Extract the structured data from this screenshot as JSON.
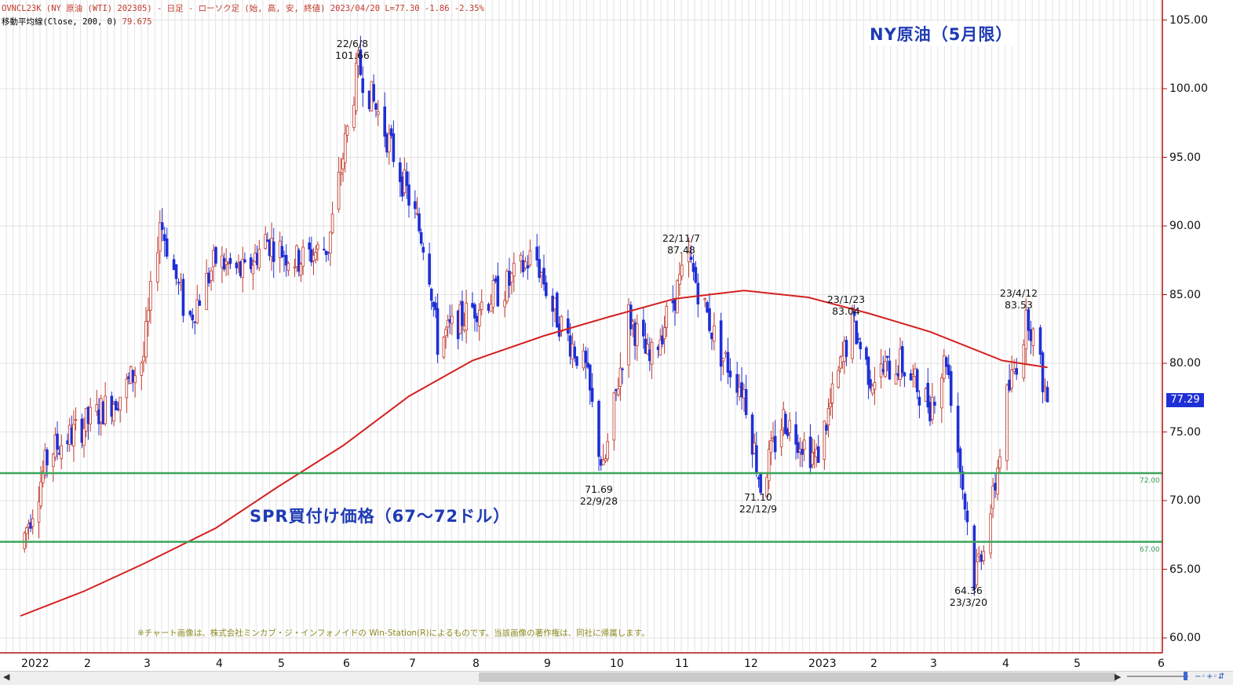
{
  "header": {
    "line1": "OVNCL23K (NY 原油 (WTI) 202305) - 日足 - ローソク足 (始, 高, 安, 終値)  2023/04/20 L=77.30 -1.86  -2.35%",
    "line2_label": "移動平均線(Close, 200, 0)",
    "line2_value": "79.675"
  },
  "title": "NY原油（5月限）",
  "spr_label": "SPR買付け価格（67～72ドル）",
  "footnote": "※チャート画像は、株式会社ミンカブ・ジ・インフォノイドの Win-Station(R)によるものです。当該画像の著作権は、同社に帰属します。",
  "last_price": "77.29",
  "annotations": [
    {
      "date": "22/6/8",
      "value": "101.66"
    },
    {
      "date": "22/11/7",
      "value": "87.48"
    },
    {
      "date": "23/1/23",
      "value": "83.04"
    },
    {
      "date": "23/4/12",
      "value": "83.53"
    },
    {
      "date": "22/9/28",
      "value": "71.69"
    },
    {
      "date": "22/12/9",
      "value": "71.10"
    },
    {
      "date": "23/3/20",
      "value": "64.36"
    }
  ],
  "colors": {
    "up_candle": "#c0392b",
    "down_candle": "#1f2fd6",
    "ma_line": "#d42020",
    "support_lines": "#3aa55a",
    "title_text": "#1f3bb3",
    "grid": "#e3e3e3"
  },
  "icons": {
    "scroll_left": "chevron-left-icon",
    "scroll_right": "chevron-right-icon"
  },
  "chart_data": {
    "type": "candlestick",
    "title": "NY原油（5月限）",
    "y_tick_labels": [
      "105.00",
      "100.00",
      "95.00",
      "90.00",
      "85.00",
      "80.00",
      "75.00",
      "70.00",
      "65.00",
      "60.00"
    ],
    "y_range": [
      60,
      105
    ],
    "x_tick_labels": [
      "2022",
      "2",
      "3",
      "4",
      "5",
      "6",
      "7",
      "8",
      "9",
      "10",
      "11",
      "12",
      "2023",
      "2",
      "3",
      "4",
      "5",
      "6"
    ],
    "horizontal_lines": [
      {
        "label": "72.00",
        "value": 72.0
      },
      {
        "label": "67.00",
        "value": 67.0
      }
    ],
    "moving_average": {
      "name": "移動平均線(Close, 200, 0)",
      "points": [
        [
          "2022-01-01",
          61.6
        ],
        [
          "2022-02-01",
          63.4
        ],
        [
          "2022-03-01",
          65.4
        ],
        [
          "2022-04-01",
          68.0
        ],
        [
          "2022-05-01",
          71.0
        ],
        [
          "2022-06-01",
          74.0
        ],
        [
          "2022-07-01",
          77.6
        ],
        [
          "2022-08-01",
          80.2
        ],
        [
          "2022-09-01",
          82.0
        ],
        [
          "2022-10-01",
          83.4
        ],
        [
          "2022-11-01",
          84.7
        ],
        [
          "2022-12-01",
          85.3
        ],
        [
          "2023-01-01",
          84.8
        ],
        [
          "2023-02-01",
          83.6
        ],
        [
          "2023-03-01",
          82.3
        ],
        [
          "2023-04-01",
          80.2
        ],
        [
          "2023-04-20",
          79.7
        ]
      ]
    },
    "price_series": {
      "name": "NY 原油 (WTI) 202305",
      "points": [
        [
          "2022-01-01",
          66.5
        ],
        [
          "2022-01-15",
          73.5
        ],
        [
          "2022-02-01",
          75.5
        ],
        [
          "2022-02-20",
          78.0
        ],
        [
          "2022-03-01",
          80.5
        ],
        [
          "2022-03-08",
          90.5
        ],
        [
          "2022-03-20",
          83.0
        ],
        [
          "2022-04-01",
          87.5
        ],
        [
          "2022-04-15",
          86.5
        ],
        [
          "2022-04-25",
          89.0
        ],
        [
          "2022-05-10",
          87.5
        ],
        [
          "2022-05-25",
          88.5
        ],
        [
          "2022-06-08",
          101.66
        ],
        [
          "2022-06-20",
          97.0
        ],
        [
          "2022-07-01",
          92.0
        ],
        [
          "2022-07-10",
          88.0
        ],
        [
          "2022-07-15",
          81.5
        ],
        [
          "2022-08-01",
          84.0
        ],
        [
          "2022-08-15",
          85.5
        ],
        [
          "2022-08-28",
          88.0
        ],
        [
          "2022-09-05",
          84.0
        ],
        [
          "2022-09-20",
          79.5
        ],
        [
          "2022-09-28",
          72.0
        ],
        [
          "2022-10-10",
          83.5
        ],
        [
          "2022-10-20",
          80.0
        ],
        [
          "2022-11-07",
          87.48
        ],
        [
          "2022-11-20",
          81.0
        ],
        [
          "2022-12-01",
          78.0
        ],
        [
          "2022-12-09",
          71.1
        ],
        [
          "2022-12-20",
          76.0
        ],
        [
          "2023-01-05",
          73.0
        ],
        [
          "2023-01-23",
          83.04
        ],
        [
          "2023-02-01",
          79.0
        ],
        [
          "2023-02-15",
          80.0
        ],
        [
          "2023-03-01",
          77.0
        ],
        [
          "2023-03-08",
          80.5
        ],
        [
          "2023-03-20",
          64.36
        ],
        [
          "2023-03-28",
          70.0
        ],
        [
          "2023-04-03",
          77.5
        ],
        [
          "2023-04-12",
          83.53
        ],
        [
          "2023-04-20",
          77.3
        ]
      ]
    },
    "annotations": [
      {
        "date": "22/6/8",
        "value": 101.66
      },
      {
        "date": "22/11/7",
        "value": 87.48
      },
      {
        "date": "23/1/23",
        "value": 83.04
      },
      {
        "date": "23/4/12",
        "value": 83.53
      },
      {
        "date": "22/9/28",
        "value": 71.69
      },
      {
        "date": "22/12/9",
        "value": 71.1
      },
      {
        "date": "23/3/20",
        "value": 64.36
      }
    ],
    "grid": true
  }
}
